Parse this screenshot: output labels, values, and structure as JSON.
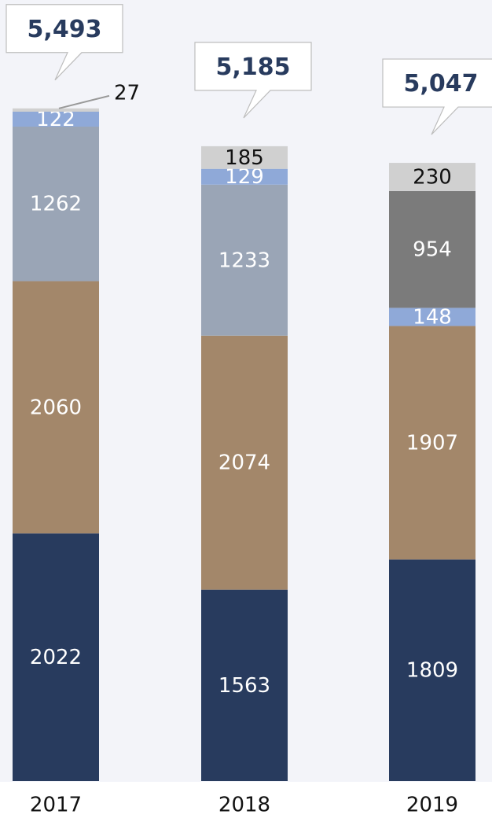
{
  "chart_data": {
    "type": "stacked-bar",
    "categories": [
      "2017",
      "2018",
      "2019"
    ],
    "series": [
      {
        "color": "#283b5e",
        "label_color": "#ffffff",
        "values": [
          2022,
          1563,
          1809
        ]
      },
      {
        "color": "#a3876a",
        "label_color": "#ffffff",
        "values": [
          2060,
          2074,
          1907
        ]
      },
      {
        "color": "#9aa5b6",
        "label_color": "#ffffff",
        "values": [
          1262,
          1233,
          null
        ]
      },
      {
        "color": "#8fa9d8",
        "label_color": "#ffffff",
        "values": [
          122,
          129,
          148
        ]
      },
      {
        "color": "#7b7b7b",
        "label_color": "#ffffff",
        "values": [
          null,
          null,
          954
        ]
      },
      {
        "color": "#d0d0d0",
        "label_color": "#111111",
        "values": [
          27,
          185,
          230
        ]
      }
    ],
    "totals": [
      {
        "value": 5493,
        "label": "5,493"
      },
      {
        "value": 5185,
        "label": "5,185"
      },
      {
        "value": 5047,
        "label": "5,047"
      }
    ],
    "ylim": [
      0,
      6378
    ]
  }
}
